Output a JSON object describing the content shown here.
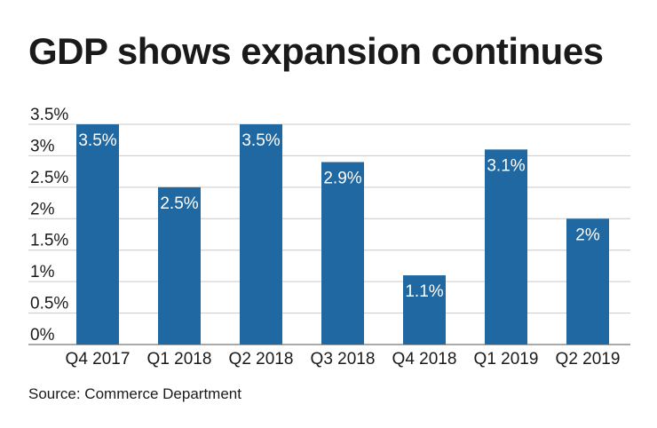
{
  "title": "GDP shows expansion continues",
  "source": "Source: Commerce Department",
  "colors": {
    "bar": "#1f68a2",
    "grid": "#c9c9c9",
    "axis": "#555555"
  },
  "chart_data": {
    "type": "bar",
    "title": "GDP shows expansion continues",
    "categories": [
      "Q4 2017",
      "Q1 2018",
      "Q2 2018",
      "Q3 2018",
      "Q4 2018",
      "Q1 2019",
      "Q2 2019"
    ],
    "values": [
      3.5,
      2.5,
      3.5,
      2.9,
      1.1,
      3.1,
      2.0
    ],
    "data_labels": [
      "3.5%",
      "2.5%",
      "3.5%",
      "2.9%",
      "1.1%",
      "3.1%",
      "2%"
    ],
    "ylim": [
      0,
      3.5
    ],
    "yticks": [
      0,
      0.5,
      1,
      1.5,
      2,
      2.5,
      3,
      3.5
    ],
    "ytick_labels": [
      "0%",
      "0.5%",
      "1%",
      "1.5%",
      "2%",
      "2.5%",
      "3%",
      "3.5%"
    ],
    "grid": true,
    "legend": "none",
    "xlabel": "",
    "ylabel": ""
  }
}
